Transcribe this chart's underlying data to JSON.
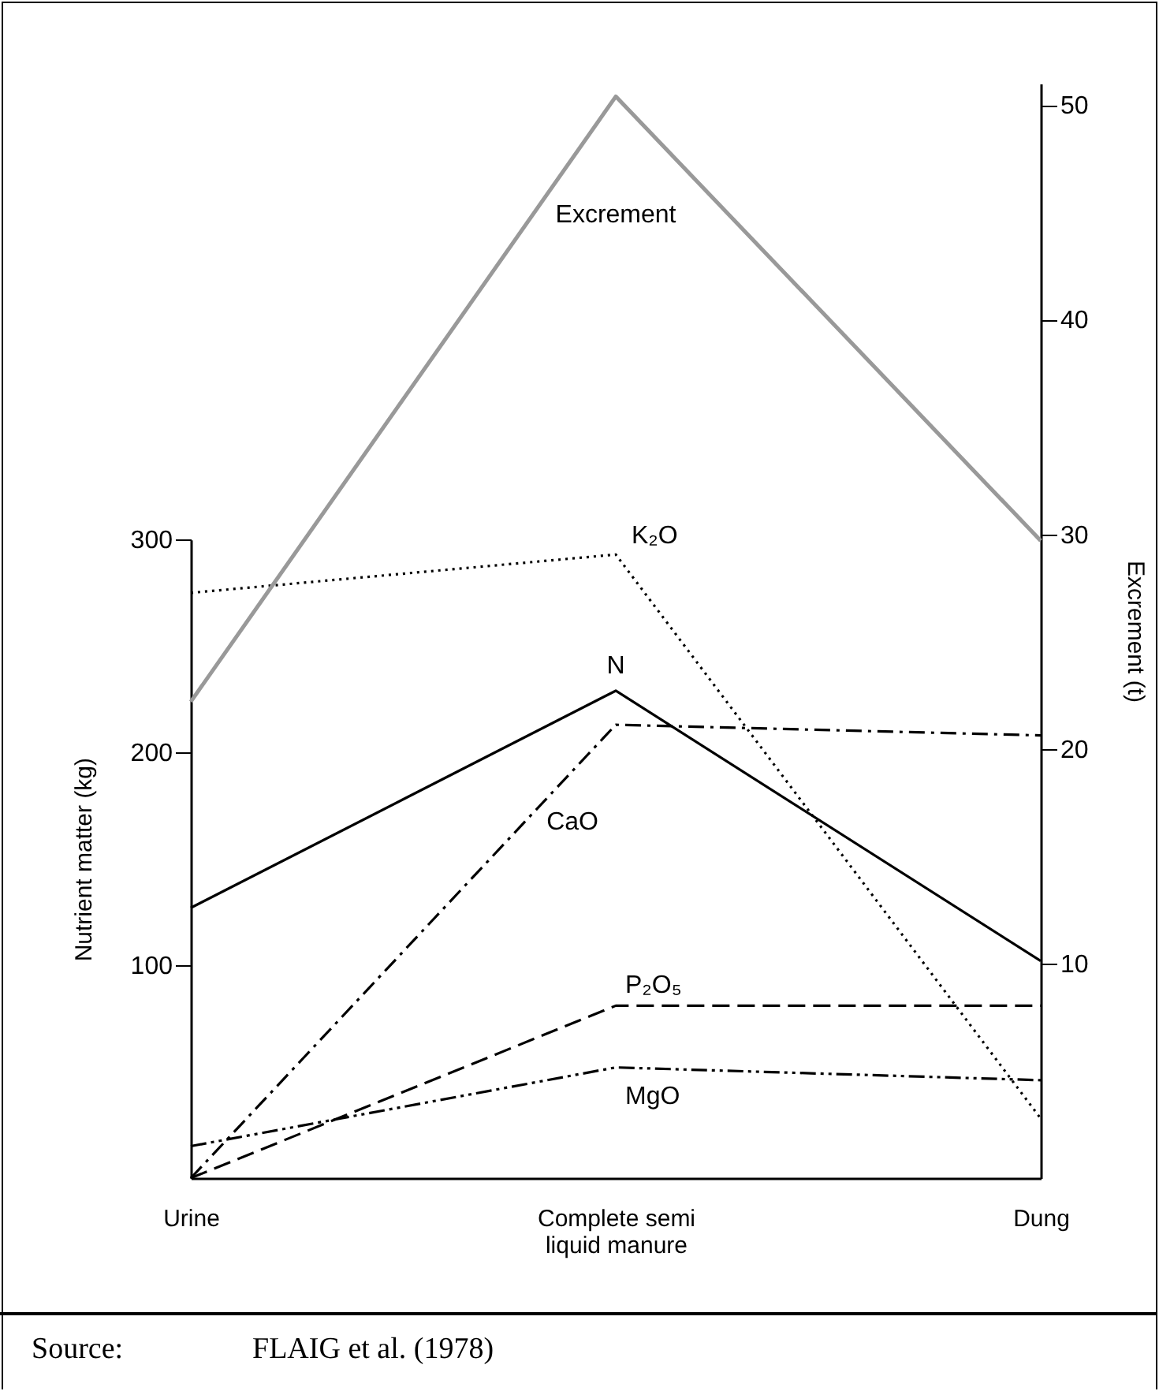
{
  "chart_data": {
    "type": "line",
    "xlabel": null,
    "ylabel": "Nutrient matter (kg)",
    "y2label": "Excrement (t)",
    "categories": [
      "Urine",
      "Complete semi liquid manure",
      "Dung"
    ],
    "series": [
      {
        "name": "Excrement",
        "color": "#999999",
        "axis": "y2",
        "line_style": "solid",
        "values": [
          22.2,
          50.4,
          29.7
        ]
      },
      {
        "name": "K₂O",
        "color": "#000000",
        "line_style": "dotted",
        "values": [
          275,
          293,
          28
        ]
      },
      {
        "name": "N",
        "color": "#000000",
        "line_style": "solid",
        "values": [
          127,
          229,
          102
        ]
      },
      {
        "name": "CaO",
        "color": "#000000",
        "line_style": "dashdot",
        "values": [
          0,
          213,
          208
        ]
      },
      {
        "name": "P₂O₅",
        "color": "#000000",
        "line_style": "dashed",
        "values": [
          0,
          81,
          81
        ]
      },
      {
        "name": "MgO",
        "color": "#000000",
        "line_style": "dashdotdot",
        "values": [
          15,
          52,
          46
        ]
      }
    ],
    "ylim": [
      0,
      300
    ],
    "yticks": [
      100,
      200,
      300
    ],
    "y2lim": [
      0,
      51
    ],
    "y2ticks": [
      10,
      20,
      30,
      40,
      50
    ],
    "grid": false,
    "legend": false,
    "marker": "none",
    "annotations": [
      "Source:\tFLAIG et al. (1978)"
    ]
  }
}
